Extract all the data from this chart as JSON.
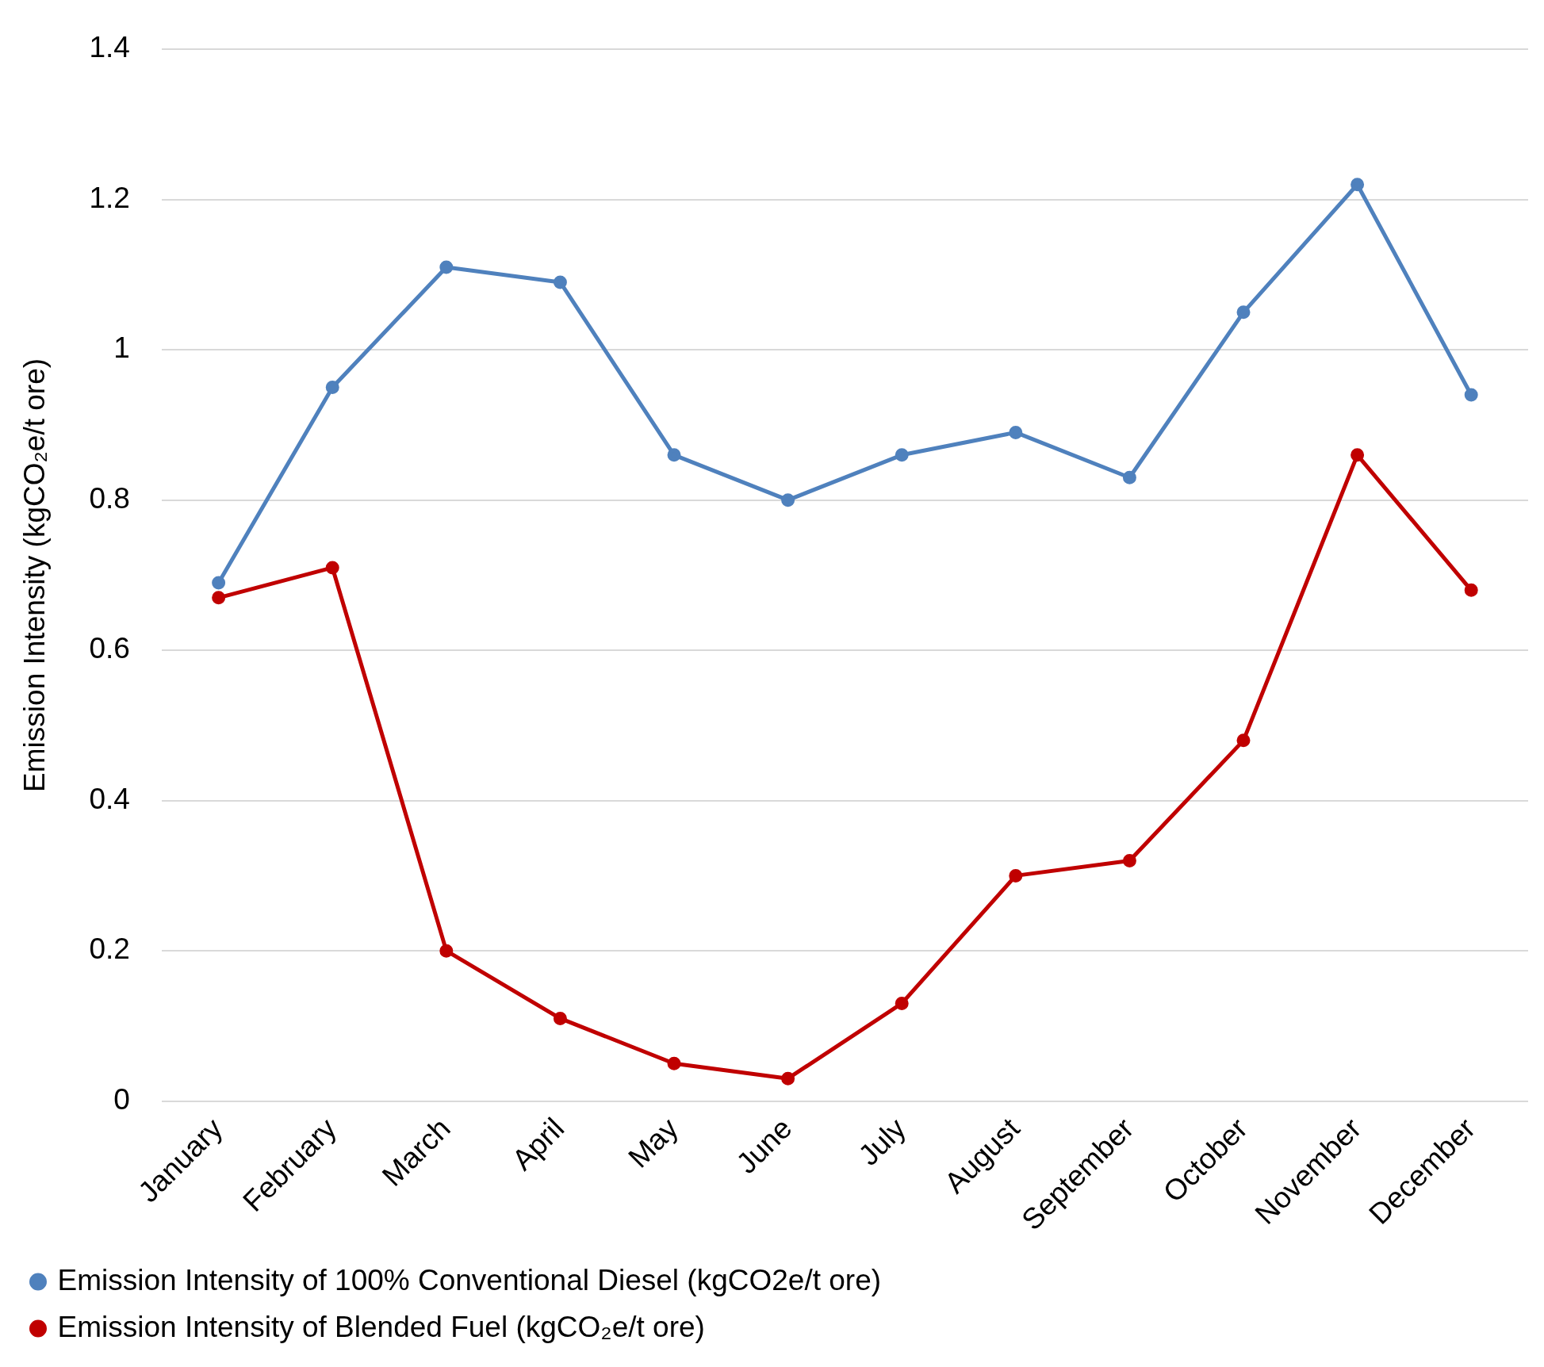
{
  "chart_data": {
    "type": "line",
    "ylabel": "Emission Intensity (kgCO₂e/t ore)",
    "categories": [
      "January",
      "February",
      "March",
      "April",
      "May",
      "June",
      "July",
      "August",
      "September",
      "October",
      "November",
      "December"
    ],
    "series": [
      {
        "name": "Emission Intensity of 100% Conventional Diesel (kgCO2e/t ore)",
        "color": "#4f81bd",
        "values": [
          0.69,
          0.95,
          1.11,
          1.09,
          0.86,
          0.8,
          0.86,
          0.89,
          0.83,
          1.05,
          1.22,
          0.94
        ]
      },
      {
        "name": "Emission Intensity of Blended Fuel (kgCO₂e/t ore)",
        "color": "#c00000",
        "values": [
          0.67,
          0.71,
          0.2,
          0.11,
          0.05,
          0.03,
          0.13,
          0.3,
          0.32,
          0.48,
          0.86,
          0.68
        ]
      }
    ],
    "ylim": [
      0,
      1.4
    ],
    "yticks": [
      0,
      0.2,
      0.4,
      0.6,
      0.8,
      1,
      1.2,
      1.4
    ],
    "grid": "y",
    "legend": "bottom",
    "marker": "circle",
    "line_style": "solid"
  }
}
